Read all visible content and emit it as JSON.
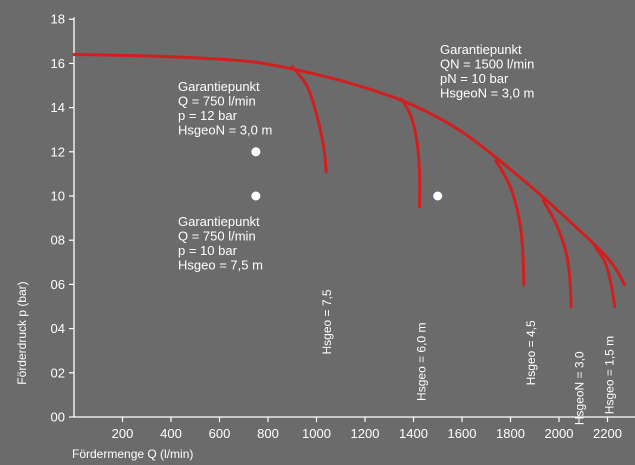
{
  "chart_data": {
    "type": "line",
    "xlabel": "Fördermenge Q (l/min)",
    "ylabel": "Förderdruck p (bar)",
    "xlim": [
      0,
      2200
    ],
    "ylim": [
      0,
      18
    ],
    "x_ticks": [
      "200",
      "400",
      "600",
      "800",
      "1000",
      "1200",
      "1400",
      "1600",
      "1800",
      "2000",
      "2200"
    ],
    "y_ticks": [
      "00",
      "02",
      "04",
      "06",
      "08",
      "10",
      "12",
      "14",
      "16",
      "18"
    ],
    "colors": {
      "background": "#6b6b6b",
      "curve": "#d11f1f",
      "text": "#ffffff"
    },
    "main_curve": [
      [
        0,
        16.4
      ],
      [
        250,
        16.35
      ],
      [
        500,
        16.25
      ],
      [
        750,
        16.05
      ],
      [
        1000,
        15.5
      ],
      [
        1200,
        14.9
      ],
      [
        1400,
        14.1
      ],
      [
        1600,
        12.9
      ],
      [
        1800,
        11.2
      ],
      [
        2000,
        9.3
      ],
      [
        2200,
        7.2
      ],
      [
        2270,
        6.0
      ]
    ],
    "series": [
      {
        "name": "Hsgeo = 7,5",
        "points": [
          [
            900,
            15.85
          ],
          [
            960,
            15.0
          ],
          [
            1000,
            13.7
          ],
          [
            1030,
            12.2
          ],
          [
            1040,
            11.1
          ]
        ]
      },
      {
        "name": "Hsgeo = 6,0 m",
        "points": [
          [
            1350,
            14.4
          ],
          [
            1390,
            13.6
          ],
          [
            1415,
            12.4
          ],
          [
            1425,
            11.0
          ],
          [
            1425,
            9.5
          ]
        ]
      },
      {
        "name": "Hsgeo = 4,5",
        "points": [
          [
            1740,
            11.6
          ],
          [
            1800,
            10.4
          ],
          [
            1835,
            9.0
          ],
          [
            1850,
            7.6
          ],
          [
            1855,
            6.0
          ]
        ]
      },
      {
        "name": "HsgeoN = 3,0",
        "points": [
          [
            1935,
            9.8
          ],
          [
            1990,
            8.7
          ],
          [
            2030,
            7.4
          ],
          [
            2045,
            6.2
          ],
          [
            2050,
            5.0
          ]
        ]
      },
      {
        "name": "Hsgeo = 1,5 m",
        "points": [
          [
            2150,
            7.7
          ],
          [
            2190,
            7.0
          ],
          [
            2215,
            6.0
          ],
          [
            2230,
            5.0
          ]
        ]
      }
    ],
    "points": [
      {
        "x": 750,
        "y": 12
      },
      {
        "x": 750,
        "y": 10
      },
      {
        "x": 1500,
        "y": 10
      }
    ],
    "annotations": [
      {
        "lines": [
          "Garantiepunkt",
          "Q = 750 l/min",
          "p = 12 bar",
          "HsgeoN = 3,0 m"
        ]
      },
      {
        "lines": [
          "Garantiepunkt",
          "Q = 750 l/min",
          "p = 10 bar",
          "Hsgeo = 7,5 m"
        ]
      },
      {
        "lines": [
          "Garantiepunkt",
          "QN = 1500 l/min",
          "pN = 10 bar",
          "HsgeoN = 3,0 m"
        ]
      }
    ]
  }
}
